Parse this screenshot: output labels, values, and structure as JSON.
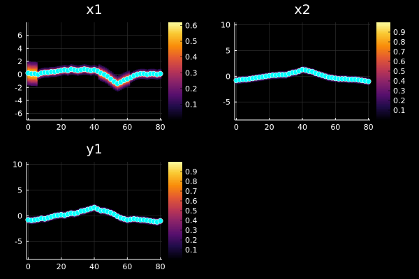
{
  "chart_data": [
    {
      "type": "heatmap",
      "title": "x1",
      "xlim": [
        -1,
        81
      ],
      "ylim": [
        -7,
        8
      ],
      "xticks": [
        0,
        20,
        40,
        60,
        80
      ],
      "yticks": [
        -6,
        -4,
        -2,
        0,
        2,
        4,
        6
      ],
      "colorbar": {
        "range": [
          0,
          0.62
        ],
        "ticks": [
          0.1,
          0.2,
          0.3,
          0.4,
          0.5,
          0.6
        ]
      },
      "grid": true,
      "points_color": "#00ffff",
      "points": [
        [
          0,
          0.2
        ],
        [
          2,
          0.1
        ],
        [
          4,
          0.1
        ],
        [
          6,
          0.0
        ],
        [
          8,
          0.2
        ],
        [
          10,
          0.3
        ],
        [
          12,
          0.3
        ],
        [
          14,
          0.4
        ],
        [
          16,
          0.4
        ],
        [
          18,
          0.5
        ],
        [
          20,
          0.6
        ],
        [
          22,
          0.7
        ],
        [
          24,
          0.6
        ],
        [
          26,
          0.8
        ],
        [
          28,
          0.7
        ],
        [
          30,
          0.6
        ],
        [
          32,
          0.7
        ],
        [
          34,
          0.8
        ],
        [
          36,
          0.7
        ],
        [
          38,
          0.6
        ],
        [
          40,
          0.7
        ],
        [
          42,
          0.5
        ],
        [
          44,
          0.2
        ],
        [
          46,
          0.0
        ],
        [
          48,
          -0.3
        ],
        [
          50,
          -0.7
        ],
        [
          52,
          -1.1
        ],
        [
          54,
          -1.4
        ],
        [
          56,
          -1.2
        ],
        [
          58,
          -0.9
        ],
        [
          60,
          -0.7
        ],
        [
          62,
          -0.5
        ],
        [
          64,
          -0.2
        ],
        [
          66,
          0.0
        ],
        [
          68,
          0.1
        ],
        [
          70,
          0.1
        ],
        [
          72,
          0.0
        ],
        [
          74,
          0.1
        ],
        [
          76,
          0.1
        ],
        [
          78,
          0.0
        ],
        [
          80,
          0.1
        ]
      ]
    },
    {
      "type": "heatmap",
      "title": "x2",
      "xlim": [
        -1,
        81
      ],
      "ylim": [
        -8.5,
        10.5
      ],
      "xticks": [
        0,
        20,
        40,
        60,
        80
      ],
      "yticks": [
        -5,
        0,
        5,
        10
      ],
      "colorbar": {
        "range": [
          0,
          1.0
        ],
        "ticks": [
          0.1,
          0.2,
          0.3,
          0.4,
          0.5,
          0.6,
          0.7,
          0.8,
          0.9
        ]
      },
      "grid": true,
      "points_color": "#00ffff",
      "points": [
        [
          0,
          -0.8
        ],
        [
          2,
          -0.7
        ],
        [
          4,
          -0.6
        ],
        [
          6,
          -0.6
        ],
        [
          8,
          -0.5
        ],
        [
          10,
          -0.4
        ],
        [
          12,
          -0.3
        ],
        [
          14,
          -0.2
        ],
        [
          16,
          -0.1
        ],
        [
          18,
          0.0
        ],
        [
          20,
          0.1
        ],
        [
          22,
          0.2
        ],
        [
          24,
          0.2
        ],
        [
          26,
          0.3
        ],
        [
          28,
          0.3
        ],
        [
          30,
          0.3
        ],
        [
          32,
          0.5
        ],
        [
          34,
          0.7
        ],
        [
          36,
          0.8
        ],
        [
          38,
          1.0
        ],
        [
          40,
          1.3
        ],
        [
          42,
          1.2
        ],
        [
          44,
          1.0
        ],
        [
          46,
          0.9
        ],
        [
          48,
          0.6
        ],
        [
          50,
          0.4
        ],
        [
          52,
          0.2
        ],
        [
          54,
          0.0
        ],
        [
          56,
          -0.2
        ],
        [
          58,
          -0.3
        ],
        [
          60,
          -0.4
        ],
        [
          62,
          -0.5
        ],
        [
          64,
          -0.5
        ],
        [
          66,
          -0.5
        ],
        [
          68,
          -0.6
        ],
        [
          70,
          -0.6
        ],
        [
          72,
          -0.6
        ],
        [
          74,
          -0.7
        ],
        [
          76,
          -0.8
        ],
        [
          78,
          -0.9
        ],
        [
          80,
          -1.0
        ]
      ]
    },
    {
      "type": "heatmap",
      "title": "y1",
      "xlim": [
        -1,
        81
      ],
      "ylim": [
        -8.5,
        10.5
      ],
      "xticks": [
        0,
        20,
        40,
        60,
        80
      ],
      "yticks": [
        -5,
        0,
        5,
        10
      ],
      "colorbar": {
        "range": [
          0,
          1.0
        ],
        "ticks": [
          0.1,
          0.2,
          0.3,
          0.4,
          0.5,
          0.6,
          0.7,
          0.8,
          0.9
        ]
      },
      "grid": true,
      "points_color": "#00ffff",
      "points": [
        [
          0,
          -0.8
        ],
        [
          2,
          -0.9
        ],
        [
          4,
          -0.8
        ],
        [
          6,
          -0.7
        ],
        [
          8,
          -0.5
        ],
        [
          10,
          -0.6
        ],
        [
          12,
          -0.4
        ],
        [
          14,
          -0.2
        ],
        [
          16,
          0.0
        ],
        [
          18,
          0.1
        ],
        [
          20,
          0.2
        ],
        [
          22,
          0.1
        ],
        [
          24,
          0.3
        ],
        [
          26,
          0.5
        ],
        [
          28,
          0.4
        ],
        [
          30,
          0.6
        ],
        [
          32,
          0.9
        ],
        [
          34,
          1.0
        ],
        [
          36,
          1.2
        ],
        [
          38,
          1.4
        ],
        [
          40,
          1.6
        ],
        [
          42,
          1.3
        ],
        [
          44,
          1.0
        ],
        [
          46,
          1.0
        ],
        [
          48,
          0.8
        ],
        [
          50,
          0.6
        ],
        [
          52,
          0.3
        ],
        [
          54,
          -0.1
        ],
        [
          56,
          -0.4
        ],
        [
          58,
          -0.6
        ],
        [
          60,
          -0.8
        ],
        [
          62,
          -0.7
        ],
        [
          64,
          -0.6
        ],
        [
          66,
          -0.7
        ],
        [
          68,
          -0.8
        ],
        [
          70,
          -0.8
        ],
        [
          72,
          -0.9
        ],
        [
          74,
          -1.0
        ],
        [
          76,
          -1.1
        ],
        [
          78,
          -1.2
        ],
        [
          80,
          -1.0
        ]
      ]
    }
  ]
}
